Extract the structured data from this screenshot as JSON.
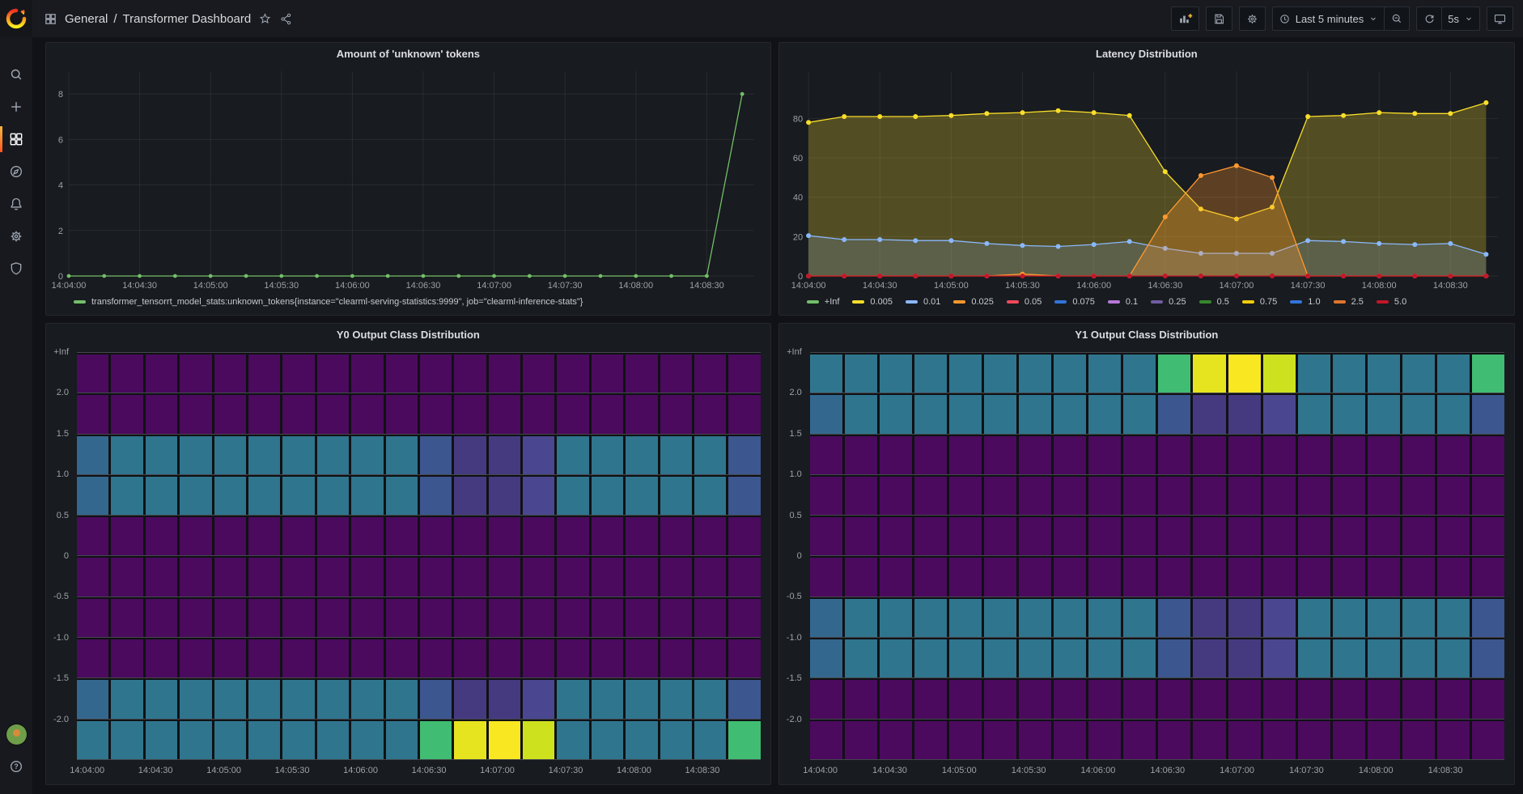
{
  "nav": {
    "breadcrumb": {
      "section": "General",
      "separator": "/",
      "title": "Transformer Dashboard"
    },
    "actions": {
      "time_range": "Last 5 minutes",
      "refresh_interval": "5s"
    },
    "icons": [
      "apps-grid",
      "star",
      "share",
      "add-panel",
      "save",
      "settings",
      "clock",
      "chevron-down",
      "zoom-out",
      "refresh",
      "tv"
    ]
  },
  "sidebar": {
    "icons": [
      "grafana-logo",
      "search",
      "plus",
      "dashboards",
      "explore-compass",
      "alerting-bell",
      "configuration-gear",
      "server-admin-shield",
      "user-avatar",
      "help"
    ]
  },
  "colors": {
    "accent_orange": "#ff780a",
    "active_indicator": "#ff5722",
    "panel_bg": "#181b1f",
    "page_bg": "#111217"
  },
  "chart_data": [
    {
      "type": "line",
      "title": "Amount of 'unknown' tokens",
      "x_ticks": [
        "14:04:00",
        "14:04:30",
        "14:05:00",
        "14:05:30",
        "14:06:00",
        "14:06:30",
        "14:07:00",
        "14:07:30",
        "14:08:00",
        "14:08:30"
      ],
      "x_tick_step_s": 30,
      "point_step_s": 15,
      "x_max_s": 290,
      "y_ticks": [
        0,
        2,
        4,
        6,
        8
      ],
      "y_max_render": 9,
      "y_axis_width": 22,
      "marker_r": 2.4,
      "grid": true,
      "legend_position": "bottom-left",
      "series": [
        {
          "name": "transformer_tensorrt_model_stats:unknown_tokens{instance=\"clearml-serving-statistics:9999\", job=\"clearml-inference-stats\"}",
          "color": "#73BF69",
          "fill_opacity": 0,
          "values": [
            0,
            0,
            0,
            0,
            0,
            0,
            0,
            0,
            0,
            0,
            0,
            0,
            0,
            0,
            0,
            0,
            0,
            0,
            0,
            8
          ]
        }
      ],
      "legend": [
        {
          "label": "transformer_tensorrt_model_stats:unknown_tokens{instance=\"clearml-serving-statistics:9999\", job=\"clearml-inference-stats\"}",
          "color": "#73BF69"
        }
      ]
    },
    {
      "type": "area",
      "title": "Latency Distribution",
      "x_ticks": [
        "14:04:00",
        "14:04:30",
        "14:05:00",
        "14:05:30",
        "14:06:00",
        "14:06:30",
        "14:07:00",
        "14:07:30",
        "14:08:00",
        "14:08:30"
      ],
      "x_tick_step_s": 30,
      "point_step_s": 15,
      "x_max_s": 290,
      "y_ticks": [
        0,
        20,
        40,
        60,
        80
      ],
      "y_max_render": 104,
      "y_axis_width": 30,
      "marker_r": 3,
      "grid": true,
      "legend_position": "bottom-left",
      "series": [
        {
          "name": "0.005",
          "color": "#FADE2A",
          "fill_opacity": 0.26,
          "values": [
            78,
            81,
            81,
            81,
            81.5,
            82.5,
            83,
            84,
            83,
            81.5,
            53,
            34,
            29,
            35,
            81,
            81.5,
            83,
            82.5,
            82.5,
            88
          ]
        },
        {
          "name": "0.01",
          "color": "#8AB8FF",
          "fill_opacity": 0.18,
          "values": [
            20.5,
            18.5,
            18.5,
            18,
            18,
            16.5,
            15.5,
            15,
            16,
            17.5,
            14,
            11.5,
            11.5,
            11.5,
            18,
            17.5,
            16.5,
            16,
            16.5,
            11
          ]
        },
        {
          "name": "0.025",
          "color": "#FF9830",
          "fill_opacity": 0.3,
          "values": [
            0,
            0,
            0,
            0,
            0,
            0,
            1,
            0,
            0,
            0,
            30,
            51,
            56,
            50,
            0,
            0,
            0,
            0,
            0,
            0
          ]
        },
        {
          "name": "5.0",
          "color": "#C4162A",
          "fill_opacity": 0,
          "values": [
            0,
            0,
            0,
            0,
            0,
            0,
            0,
            0,
            0,
            0,
            0,
            0,
            0,
            0,
            0,
            0,
            0,
            0,
            0,
            0
          ]
        }
      ],
      "legend": [
        {
          "label": "+Inf",
          "color": "#73BF69"
        },
        {
          "label": "0.005",
          "color": "#FADE2A"
        },
        {
          "label": "0.01",
          "color": "#8AB8FF"
        },
        {
          "label": "0.025",
          "color": "#FF9830"
        },
        {
          "label": "0.05",
          "color": "#F2495C"
        },
        {
          "label": "0.075",
          "color": "#3274D9"
        },
        {
          "label": "0.1",
          "color": "#B877D9"
        },
        {
          "label": "0.25",
          "color": "#705DA0"
        },
        {
          "label": "0.5",
          "color": "#37872D"
        },
        {
          "label": "0.75",
          "color": "#F2CC0C"
        },
        {
          "label": "1.0",
          "color": "#3274D9"
        },
        {
          "label": "2.5",
          "color": "#E0752D"
        },
        {
          "label": "5.0",
          "color": "#C4162A"
        }
      ]
    },
    {
      "type": "heatmap",
      "title": "Y0 Output Class Distribution",
      "y_labels": [
        "+Inf",
        "2.0",
        "1.5",
        "1.0",
        "0.5",
        "0",
        "-0.5",
        "-1.0",
        "-1.5",
        "-2.0"
      ],
      "x_ticks": [
        "14:04:00",
        "14:04:30",
        "14:05:00",
        "14:05:30",
        "14:06:00",
        "14:06:30",
        "14:07:00",
        "14:07:30",
        "14:08:00",
        "14:08:30"
      ],
      "palette": {
        "P": "#4b0a5e",
        "T": "#2f758e",
        "t": "#34678e",
        "B": "#3c568f",
        "V": "#453a80",
        "v": "#4a4790",
        "G": "#40bd72",
        "Y1": "#e6e41f",
        "Y2": "#f9e722",
        "Y3": "#cde11f"
      },
      "row_patterns": {
        "P": [
          "P",
          "P",
          "P",
          "P",
          "P",
          "P",
          "P",
          "P",
          "P",
          "P",
          "P",
          "P",
          "P",
          "P",
          "P",
          "P",
          "P",
          "P",
          "P",
          "P"
        ],
        "A": [
          "t",
          "T",
          "T",
          "T",
          "T",
          "T",
          "T",
          "T",
          "T",
          "T",
          "B",
          "V",
          "V",
          "v",
          "T",
          "T",
          "T",
          "T",
          "T",
          "B"
        ],
        "E": [
          "T",
          "T",
          "T",
          "T",
          "T",
          "T",
          "T",
          "T",
          "T",
          "T",
          "G",
          "Y1",
          "Y2",
          "Y3",
          "T",
          "T",
          "T",
          "T",
          "T",
          "G"
        ]
      },
      "rows": [
        "P",
        "P",
        "A",
        "A",
        "P",
        "P",
        "P",
        "P",
        "A",
        "E"
      ]
    },
    {
      "type": "heatmap",
      "title": "Y1 Output Class Distribution",
      "y_labels": [
        "+Inf",
        "2.0",
        "1.5",
        "1.0",
        "0.5",
        "0",
        "-0.5",
        "-1.0",
        "-1.5",
        "-2.0"
      ],
      "x_ticks": [
        "14:04:00",
        "14:04:30",
        "14:05:00",
        "14:05:30",
        "14:06:00",
        "14:06:30",
        "14:07:00",
        "14:07:30",
        "14:08:00",
        "14:08:30"
      ],
      "palette": {
        "P": "#4b0a5e",
        "T": "#2f758e",
        "t": "#34678e",
        "B": "#3c568f",
        "V": "#453a80",
        "v": "#4a4790",
        "G": "#40bd72",
        "Y1": "#e6e41f",
        "Y2": "#f9e722",
        "Y3": "#cde11f"
      },
      "row_patterns": {
        "P": [
          "P",
          "P",
          "P",
          "P",
          "P",
          "P",
          "P",
          "P",
          "P",
          "P",
          "P",
          "P",
          "P",
          "P",
          "P",
          "P",
          "P",
          "P",
          "P",
          "P"
        ],
        "A": [
          "t",
          "T",
          "T",
          "T",
          "T",
          "T",
          "T",
          "T",
          "T",
          "T",
          "B",
          "V",
          "V",
          "v",
          "T",
          "T",
          "T",
          "T",
          "T",
          "B"
        ],
        "E": [
          "T",
          "T",
          "T",
          "T",
          "T",
          "T",
          "T",
          "T",
          "T",
          "T",
          "G",
          "Y1",
          "Y2",
          "Y3",
          "T",
          "T",
          "T",
          "T",
          "T",
          "G"
        ]
      },
      "rows": [
        "E",
        "A",
        "P",
        "P",
        "P",
        "P",
        "A",
        "A",
        "P",
        "P"
      ]
    }
  ]
}
